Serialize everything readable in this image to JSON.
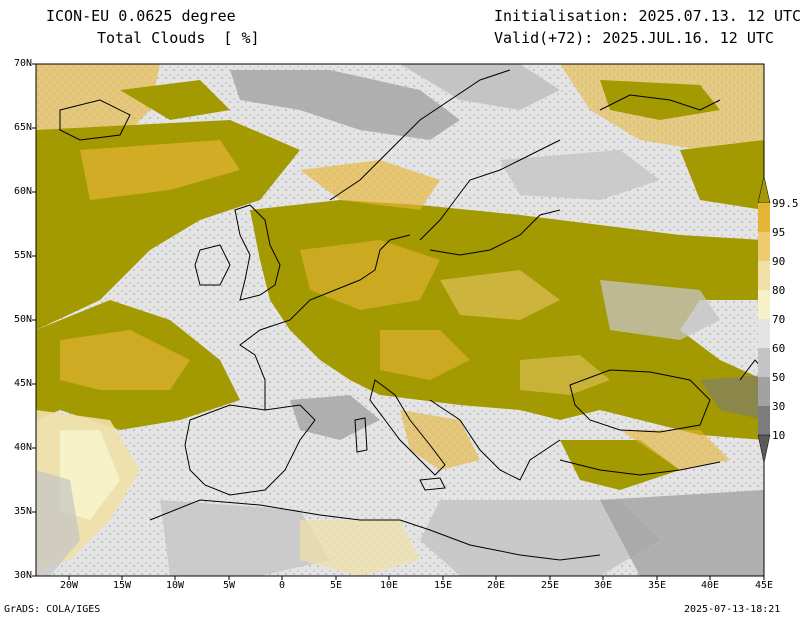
{
  "header": {
    "model": "ICON-EU 0.0625 degree",
    "field": "Total Clouds  [ %]",
    "init": "Initialisation: 2025.07.13. 12 UTC",
    "valid": "Valid(+72): 2025.JUL.16. 12 UTC"
  },
  "axes": {
    "lat_labels": [
      "70N",
      "65N",
      "60N",
      "55N",
      "50N",
      "45N",
      "40N",
      "35N",
      "30N"
    ],
    "lon_labels": [
      "20W",
      "15W",
      "10W",
      "5W",
      "0",
      "5E",
      "10E",
      "15E",
      "20E",
      "25E",
      "30E",
      "35E",
      "40E",
      "45E"
    ]
  },
  "colorbar": {
    "labels": [
      "99.5",
      "95",
      "90",
      "80",
      "70",
      "60",
      "50",
      "30",
      "10"
    ],
    "colors": [
      "#a39900",
      "#e6b435",
      "#eecb6f",
      "#f0e0a6",
      "#f6f2c7",
      "#e4e4e4",
      "#c4c4c4",
      "#a2a2a2",
      "#7c7c7c",
      "#5a5a5a"
    ]
  },
  "footer": {
    "left": "GrADS: COLA/IGES",
    "right": "2025-07-13-18:21"
  }
}
